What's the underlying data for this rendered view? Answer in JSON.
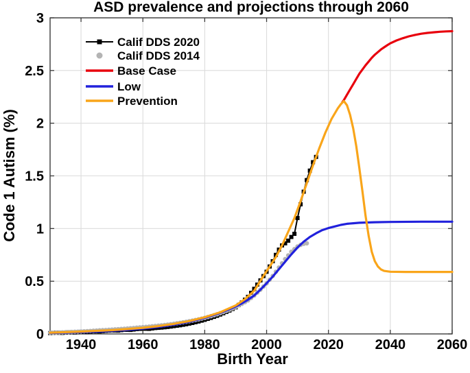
{
  "chart_data": {
    "type": "line",
    "title": "ASD prevalence and projections through 2060",
    "xlabel": "Birth Year",
    "ylabel": "Code 1 Autism (%)",
    "xlim": [
      1930,
      2060
    ],
    "ylim": [
      0,
      3
    ],
    "grid": true,
    "legend_position": "upper-left-inside",
    "xticks": {
      "values": [
        1940,
        1960,
        1980,
        2000,
        2020,
        2040,
        2060
      ],
      "labels": [
        "1940",
        "1960",
        "1980",
        "2000",
        "2020",
        "2040",
        "2060"
      ]
    },
    "yticks": {
      "values": [
        0,
        0.5,
        1,
        1.5,
        2,
        2.5,
        3
      ],
      "labels": [
        "0",
        "0.5",
        "1",
        "1.5",
        "2",
        "2.5",
        "3"
      ]
    },
    "colors": {
      "dds2020": "#000000",
      "dds2014": "#b4b4b4",
      "base_case": "#e8000d",
      "low": "#2121dc",
      "prevention": "#f9a51a",
      "grid": "#dcdcdc",
      "axis": "#3a3a3a",
      "background": "#ffffff"
    },
    "series": [
      {
        "name": "Calif DDS 2020",
        "style": "line+marker",
        "marker": "square",
        "color_key": "dds2020",
        "line_width": 2,
        "marker_size": 6,
        "marker_step_years": 1,
        "points": [
          [
            1930,
            0.008
          ],
          [
            1932,
            0.012
          ],
          [
            1934,
            0.01
          ],
          [
            1936,
            0.015
          ],
          [
            1938,
            0.014
          ],
          [
            1940,
            0.02
          ],
          [
            1942,
            0.018
          ],
          [
            1944,
            0.025
          ],
          [
            1946,
            0.024
          ],
          [
            1948,
            0.03
          ],
          [
            1950,
            0.034
          ],
          [
            1952,
            0.032
          ],
          [
            1954,
            0.04
          ],
          [
            1956,
            0.038
          ],
          [
            1958,
            0.046
          ],
          [
            1960,
            0.05
          ],
          [
            1962,
            0.048
          ],
          [
            1964,
            0.056
          ],
          [
            1966,
            0.06
          ],
          [
            1968,
            0.066
          ],
          [
            1970,
            0.074
          ],
          [
            1972,
            0.082
          ],
          [
            1974,
            0.092
          ],
          [
            1976,
            0.104
          ],
          [
            1978,
            0.118
          ],
          [
            1980,
            0.134
          ],
          [
            1982,
            0.152
          ],
          [
            1984,
            0.172
          ],
          [
            1986,
            0.196
          ],
          [
            1988,
            0.222
          ],
          [
            1990,
            0.252
          ],
          [
            1992,
            0.298
          ],
          [
            1994,
            0.352
          ],
          [
            1996,
            0.428
          ],
          [
            1998,
            0.508
          ],
          [
            2000,
            0.59
          ],
          [
            2001,
            0.64
          ],
          [
            2002,
            0.69
          ],
          [
            2003,
            0.75
          ],
          [
            2004,
            0.8
          ],
          [
            2005,
            0.84
          ],
          [
            2006,
            0.86
          ],
          [
            2007,
            0.885
          ],
          [
            2008,
            0.92
          ],
          [
            2009,
            0.95
          ],
          [
            2010,
            1.1
          ],
          [
            2011,
            1.23
          ],
          [
            2012,
            1.35
          ],
          [
            2013,
            1.46
          ],
          [
            2014,
            1.55
          ],
          [
            2015,
            1.63
          ],
          [
            2016,
            1.68
          ]
        ]
      },
      {
        "name": "Calif DDS 2014",
        "style": "marker",
        "marker": "circle",
        "color_key": "dds2014",
        "marker_size": 6.5,
        "marker_step_years": 1,
        "points": [
          [
            1930,
            0.01
          ],
          [
            1932,
            0.013
          ],
          [
            1934,
            0.015
          ],
          [
            1936,
            0.017
          ],
          [
            1938,
            0.02
          ],
          [
            1940,
            0.023
          ],
          [
            1942,
            0.026
          ],
          [
            1944,
            0.03
          ],
          [
            1946,
            0.034
          ],
          [
            1948,
            0.037
          ],
          [
            1950,
            0.041
          ],
          [
            1952,
            0.045
          ],
          [
            1954,
            0.049
          ],
          [
            1956,
            0.054
          ],
          [
            1958,
            0.059
          ],
          [
            1960,
            0.064
          ],
          [
            1962,
            0.069
          ],
          [
            1964,
            0.075
          ],
          [
            1966,
            0.081
          ],
          [
            1968,
            0.088
          ],
          [
            1970,
            0.096
          ],
          [
            1972,
            0.105
          ],
          [
            1974,
            0.115
          ],
          [
            1976,
            0.126
          ],
          [
            1978,
            0.138
          ],
          [
            1980,
            0.152
          ],
          [
            1982,
            0.168
          ],
          [
            1984,
            0.186
          ],
          [
            1986,
            0.207
          ],
          [
            1988,
            0.23
          ],
          [
            1990,
            0.256
          ],
          [
            1992,
            0.285
          ],
          [
            1994,
            0.318
          ],
          [
            1996,
            0.365
          ],
          [
            1998,
            0.42
          ],
          [
            2000,
            0.48
          ],
          [
            2002,
            0.55
          ],
          [
            2004,
            0.63
          ],
          [
            2006,
            0.71
          ],
          [
            2008,
            0.78
          ],
          [
            2010,
            0.83
          ],
          [
            2011,
            0.845
          ],
          [
            2012,
            0.855
          ],
          [
            2013,
            0.86
          ]
        ]
      },
      {
        "name": "Base Case",
        "style": "line",
        "color_key": "base_case",
        "line_width": 3.2,
        "points": [
          [
            2024.5,
            2.2
          ],
          [
            2025,
            2.22
          ],
          [
            2026,
            2.27
          ],
          [
            2027,
            2.32
          ],
          [
            2028,
            2.37
          ],
          [
            2029,
            2.42
          ],
          [
            2030,
            2.47
          ],
          [
            2031,
            2.51
          ],
          [
            2032,
            2.55
          ],
          [
            2033,
            2.585
          ],
          [
            2034,
            2.62
          ],
          [
            2035,
            2.65
          ],
          [
            2036,
            2.675
          ],
          [
            2037,
            2.7
          ],
          [
            2038,
            2.72
          ],
          [
            2039,
            2.74
          ],
          [
            2040,
            2.758
          ],
          [
            2042,
            2.785
          ],
          [
            2044,
            2.806
          ],
          [
            2046,
            2.824
          ],
          [
            2048,
            2.838
          ],
          [
            2050,
            2.849
          ],
          [
            2052,
            2.857
          ],
          [
            2054,
            2.863
          ],
          [
            2056,
            2.868
          ],
          [
            2058,
            2.871
          ],
          [
            2060,
            2.873
          ]
        ]
      },
      {
        "name": "Low",
        "style": "line",
        "color_key": "low",
        "line_width": 3.2,
        "points": [
          [
            1930,
            0.01
          ],
          [
            1935,
            0.013
          ],
          [
            1940,
            0.017
          ],
          [
            1945,
            0.022
          ],
          [
            1950,
            0.029
          ],
          [
            1955,
            0.038
          ],
          [
            1960,
            0.05
          ],
          [
            1965,
            0.066
          ],
          [
            1970,
            0.087
          ],
          [
            1975,
            0.115
          ],
          [
            1980,
            0.152
          ],
          [
            1985,
            0.2
          ],
          [
            1988,
            0.235
          ],
          [
            1990,
            0.26
          ],
          [
            1992,
            0.29
          ],
          [
            1994,
            0.325
          ],
          [
            1996,
            0.365
          ],
          [
            1998,
            0.42
          ],
          [
            2000,
            0.48
          ],
          [
            2002,
            0.545
          ],
          [
            2004,
            0.615
          ],
          [
            2006,
            0.685
          ],
          [
            2008,
            0.755
          ],
          [
            2010,
            0.82
          ],
          [
            2012,
            0.875
          ],
          [
            2014,
            0.92
          ],
          [
            2016,
            0.955
          ],
          [
            2018,
            0.985
          ],
          [
            2020,
            1.005
          ],
          [
            2022,
            1.02
          ],
          [
            2024,
            1.035
          ],
          [
            2026,
            1.045
          ],
          [
            2028,
            1.05
          ],
          [
            2030,
            1.055
          ],
          [
            2035,
            1.06
          ],
          [
            2040,
            1.063
          ],
          [
            2050,
            1.065
          ],
          [
            2060,
            1.065
          ]
        ]
      },
      {
        "name": "Prevention",
        "style": "line",
        "color_key": "prevention",
        "line_width": 3.2,
        "points": [
          [
            1930,
            0.012
          ],
          [
            1940,
            0.022
          ],
          [
            1950,
            0.036
          ],
          [
            1955,
            0.046
          ],
          [
            1960,
            0.058
          ],
          [
            1965,
            0.074
          ],
          [
            1970,
            0.095
          ],
          [
            1975,
            0.122
          ],
          [
            1980,
            0.158
          ],
          [
            1985,
            0.205
          ],
          [
            1990,
            0.27
          ],
          [
            1993,
            0.33
          ],
          [
            1996,
            0.41
          ],
          [
            1999,
            0.55
          ],
          [
            2001,
            0.64
          ],
          [
            2003,
            0.73
          ],
          [
            2005,
            0.84
          ],
          [
            2007,
            0.97
          ],
          [
            2009,
            1.1
          ],
          [
            2011,
            1.26
          ],
          [
            2013,
            1.43
          ],
          [
            2015,
            1.6
          ],
          [
            2017,
            1.76
          ],
          [
            2019,
            1.91
          ],
          [
            2021,
            2.04
          ],
          [
            2023,
            2.14
          ],
          [
            2024,
            2.18
          ],
          [
            2025,
            2.21
          ],
          [
            2026,
            2.17
          ],
          [
            2027,
            2.08
          ],
          [
            2028,
            1.95
          ],
          [
            2029,
            1.78
          ],
          [
            2030,
            1.57
          ],
          [
            2031,
            1.35
          ],
          [
            2032,
            1.12
          ],
          [
            2033,
            0.93
          ],
          [
            2034,
            0.78
          ],
          [
            2035,
            0.69
          ],
          [
            2036,
            0.64
          ],
          [
            2037,
            0.612
          ],
          [
            2038,
            0.598
          ],
          [
            2040,
            0.59
          ],
          [
            2045,
            0.588
          ],
          [
            2050,
            0.588
          ],
          [
            2060,
            0.588
          ]
        ]
      }
    ],
    "legend": {
      "entries": [
        "Calif DDS 2020",
        "Calif DDS 2014",
        "Base Case",
        "Low",
        "Prevention"
      ]
    }
  }
}
